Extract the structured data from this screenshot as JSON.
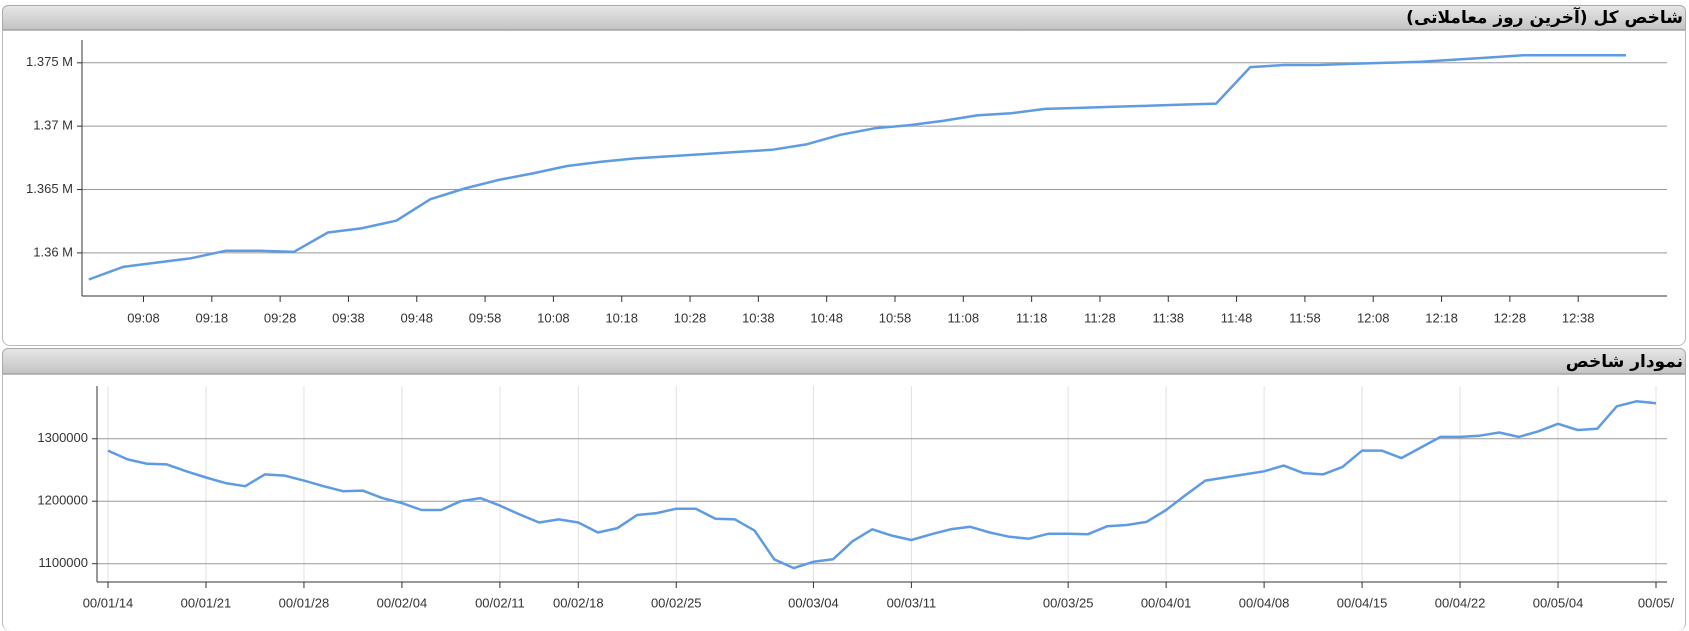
{
  "chart_data": [
    {
      "type": "line",
      "title": "شاخص کل (آخرین روز معاملاتی)",
      "color": "#5e9be3",
      "x": [
        "09:00",
        "09:05",
        "09:10",
        "09:15",
        "09:20",
        "09:25",
        "09:30",
        "09:35",
        "09:40",
        "09:45",
        "09:50",
        "09:55",
        "10:00",
        "10:05",
        "10:10",
        "10:15",
        "10:20",
        "10:25",
        "10:30",
        "10:35",
        "10:40",
        "10:45",
        "10:50",
        "10:55",
        "11:00",
        "11:05",
        "11:10",
        "11:15",
        "11:20",
        "11:25",
        "11:30",
        "11:35",
        "11:40",
        "11:45",
        "11:50",
        "11:55",
        "12:00",
        "12:05",
        "12:10",
        "12:15",
        "12:20",
        "12:25",
        "12:30",
        "12:35",
        "12:40",
        "12:45"
      ],
      "values": [
        1357900,
        1358900,
        1359240,
        1359580,
        1360170,
        1360170,
        1360080,
        1361610,
        1361950,
        1362540,
        1364240,
        1365080,
        1365760,
        1366270,
        1366860,
        1367200,
        1367460,
        1367630,
        1367800,
        1367970,
        1368140,
        1368560,
        1369320,
        1369830,
        1370080,
        1370420,
        1370850,
        1371020,
        1371360,
        1371440,
        1371530,
        1371610,
        1371700,
        1371780,
        1374660,
        1374830,
        1374830,
        1374920,
        1375000,
        1375080,
        1375250,
        1375420,
        1375590,
        1375590,
        1375590,
        1375590
      ],
      "xlim": [
        "08:59",
        "12:51"
      ],
      "xticks": [
        "09:08",
        "09:18",
        "09:28",
        "09:38",
        "09:48",
        "09:58",
        "10:08",
        "10:18",
        "10:28",
        "10:38",
        "10:48",
        "10:58",
        "11:08",
        "11:18",
        "11:28",
        "11:38",
        "11:48",
        "11:58",
        "12:08",
        "12:18",
        "12:28",
        "12:38"
      ],
      "ylim": [
        1356600,
        1376800
      ],
      "yticks": [
        {
          "value": 1360000,
          "label": "1.36 M"
        },
        {
          "value": 1365000,
          "label": "1.365 M"
        },
        {
          "value": 1370000,
          "label": "1.37 M"
        },
        {
          "value": 1375000,
          "label": "1.375 M"
        }
      ],
      "grid": true
    },
    {
      "type": "line",
      "title": "نمودار شاخص",
      "color": "#5e9be3",
      "categories": [
        "00/01/14",
        null,
        null,
        null,
        null,
        "00/01/21",
        null,
        null,
        null,
        null,
        "00/01/28",
        null,
        null,
        null,
        null,
        "00/02/04",
        null,
        null,
        null,
        null,
        "00/02/11",
        null,
        null,
        null,
        "00/02/18",
        null,
        null,
        null,
        null,
        "00/02/25",
        null,
        null,
        null,
        null,
        null,
        null,
        "00/03/04",
        null,
        null,
        null,
        null,
        "00/03/11",
        null,
        null,
        null,
        null,
        null,
        null,
        null,
        "00/03/25",
        null,
        null,
        null,
        null,
        "00/04/01",
        null,
        null,
        null,
        null,
        "00/04/08",
        null,
        null,
        null,
        null,
        "00/04/15",
        null,
        null,
        null,
        null,
        "00/04/22",
        null,
        null,
        null,
        null,
        "00/05/04",
        null,
        null,
        null,
        null,
        "00/05/"
      ],
      "values": [
        1281000,
        1267000,
        1260000,
        1259000,
        1248000,
        1238000,
        1229000,
        1224000,
        1243000,
        1241000,
        1233000,
        1224000,
        1216000,
        1217000,
        1205000,
        1197000,
        1186000,
        1186000,
        1200000,
        1205000,
        1193000,
        1179000,
        1166000,
        1171000,
        1166000,
        1150000,
        1157000,
        1178000,
        1181000,
        1188000,
        1188000,
        1172000,
        1171000,
        1153000,
        1107000,
        1093000,
        1103000,
        1107000,
        1136000,
        1155000,
        1145000,
        1138000,
        1147000,
        1155000,
        1159000,
        1150000,
        1143000,
        1140000,
        1148000,
        1148000,
        1147000,
        1160000,
        1162000,
        1167000,
        1186000,
        1210000,
        1233000,
        1238000,
        1243000,
        1248000,
        1257000,
        1245000,
        1243000,
        1255000,
        1281000,
        1281000,
        1269000,
        1286000,
        1303000,
        1303000,
        1305000,
        1310000,
        1303000,
        1312000,
        1324000,
        1314000,
        1316000,
        1352000,
        1360000,
        1357000
      ],
      "ylim": [
        1070700,
        1384500
      ],
      "yticks": [
        1100000,
        1200000,
        1300000
      ],
      "grid": true
    }
  ]
}
